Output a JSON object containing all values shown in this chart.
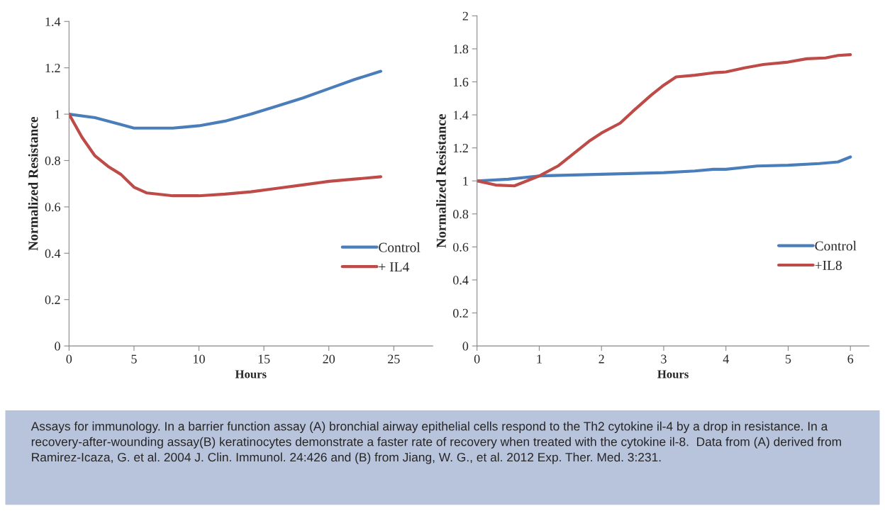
{
  "chart_data": [
    {
      "type": "line",
      "xlabel": "Hours",
      "ylabel": "Normalized Resistance",
      "xlim": [
        0,
        28
      ],
      "xticks": [
        0,
        5,
        10,
        15,
        20,
        25
      ],
      "ylim": [
        0,
        1.4
      ],
      "yticks": [
        0,
        0.2,
        0.4,
        0.6,
        0.8,
        1,
        1.2,
        1.4
      ],
      "grid": false,
      "legend": "right",
      "marker": "none",
      "line_style": "solid",
      "series": [
        {
          "name": "Control",
          "color": "#4a7ebb",
          "x": [
            0,
            2,
            4,
            5,
            6,
            8,
            10,
            12,
            14,
            16,
            18,
            20,
            22,
            24
          ],
          "values": [
            1.0,
            0.985,
            0.955,
            0.94,
            0.94,
            0.94,
            0.95,
            0.97,
            1.0,
            1.035,
            1.07,
            1.11,
            1.15,
            1.185
          ]
        },
        {
          "name": "+ IL4",
          "color": "#be4b48",
          "x": [
            0,
            1,
            2,
            3,
            4,
            5,
            6,
            8,
            10,
            12,
            14,
            16,
            18,
            20,
            22,
            24
          ],
          "values": [
            1.0,
            0.9,
            0.82,
            0.775,
            0.74,
            0.685,
            0.66,
            0.648,
            0.648,
            0.655,
            0.665,
            0.68,
            0.695,
            0.71,
            0.72,
            0.73
          ]
        }
      ],
      "annotations": [
        "Assays for immunology. In a barrier function assay (A) bronchial airway epithelial cells respond to the Th2 cytokine il-4 by a drop in resistance. In a recovery-after-wounding assay(B) keratinocytes demonstrate a faster rate of recovery when treated with the cytokine il-8.  Data from (A) derived from Ramirez-Icaza, G. et al. 2004 J. Clin. Immunol. 24:426 and (B) from Jiang, W. G., et al. 2012 Exp. Ther. Med. 3:231."
      ]
    },
    {
      "type": "line",
      "xlabel": "Hours",
      "ylabel": "Normalized Resistance",
      "xlim": [
        0,
        6.3
      ],
      "xticks": [
        0,
        1,
        2,
        3,
        4,
        5,
        6
      ],
      "ylim": [
        0,
        2
      ],
      "yticks": [
        0,
        0.2,
        0.4,
        0.6,
        0.8,
        1,
        1.2,
        1.4,
        1.6,
        1.8,
        2
      ],
      "grid": false,
      "legend": "right",
      "marker": "none",
      "line_style": "solid",
      "series": [
        {
          "name": "Control",
          "color": "#4a7ebb",
          "x": [
            0,
            0.5,
            1,
            2,
            3,
            3.5,
            3.8,
            4,
            4.5,
            5,
            5.5,
            5.8,
            6
          ],
          "values": [
            1.0,
            1.01,
            1.03,
            1.04,
            1.05,
            1.06,
            1.07,
            1.07,
            1.09,
            1.095,
            1.105,
            1.115,
            1.145
          ]
        },
        {
          "name": "+IL8",
          "color": "#be4b48",
          "x": [
            0,
            0.3,
            0.6,
            0.8,
            1,
            1.3,
            1.6,
            1.8,
            2,
            2.3,
            2.5,
            2.8,
            3,
            3.2,
            3.5,
            3.8,
            4,
            4.3,
            4.6,
            5,
            5.3,
            5.6,
            5.8,
            6
          ],
          "values": [
            1.0,
            0.975,
            0.97,
            1.0,
            1.03,
            1.09,
            1.18,
            1.24,
            1.29,
            1.35,
            1.42,
            1.52,
            1.58,
            1.63,
            1.64,
            1.655,
            1.66,
            1.685,
            1.705,
            1.72,
            1.74,
            1.745,
            1.76,
            1.765
          ]
        }
      ]
    }
  ]
}
